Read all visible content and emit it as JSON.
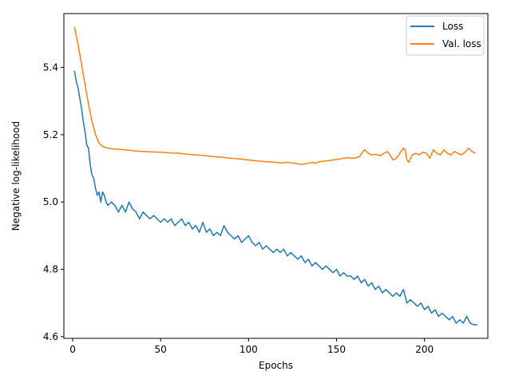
{
  "chart_data": {
    "type": "line",
    "title": "",
    "xlabel": "Epochs",
    "ylabel": "Negative log-likelihood",
    "xlim": [
      -5,
      236
    ],
    "ylim": [
      4.595,
      5.56
    ],
    "xticks": [
      0,
      50,
      100,
      150,
      200
    ],
    "yticks": [
      4.6,
      4.8,
      5.0,
      5.2,
      5.4
    ],
    "xtick_labels": [
      "0",
      "50",
      "100",
      "150",
      "200"
    ],
    "ytick_labels": [
      "4.6",
      "4.8",
      "5.0",
      "5.2",
      "5.4"
    ],
    "grid": false,
    "legend_position": "top-right",
    "series": [
      {
        "name": "Loss",
        "color": "#1f77b4",
        "points": [
          [
            1,
            5.39
          ],
          [
            2,
            5.36
          ],
          [
            3,
            5.34
          ],
          [
            4,
            5.31
          ],
          [
            5,
            5.28
          ],
          [
            6,
            5.24
          ],
          [
            7,
            5.21
          ],
          [
            8,
            5.17
          ],
          [
            9,
            5.16
          ],
          [
            10,
            5.11
          ],
          [
            11,
            5.08
          ],
          [
            12,
            5.07
          ],
          [
            13,
            5.04
          ],
          [
            14,
            5.02
          ],
          [
            15,
            5.03
          ],
          [
            16,
            5.0
          ],
          [
            17,
            5.03
          ],
          [
            18,
            5.02
          ],
          [
            19,
            5.0
          ],
          [
            20,
            4.99
          ],
          [
            22,
            5.0
          ],
          [
            24,
            4.99
          ],
          [
            26,
            4.97
          ],
          [
            28,
            4.99
          ],
          [
            30,
            4.97
          ],
          [
            32,
            5.0
          ],
          [
            34,
            4.98
          ],
          [
            36,
            4.97
          ],
          [
            38,
            4.95
          ],
          [
            40,
            4.97
          ],
          [
            42,
            4.96
          ],
          [
            44,
            4.95
          ],
          [
            46,
            4.96
          ],
          [
            48,
            4.95
          ],
          [
            50,
            4.94
          ],
          [
            52,
            4.95
          ],
          [
            54,
            4.94
          ],
          [
            56,
            4.95
          ],
          [
            58,
            4.93
          ],
          [
            60,
            4.94
          ],
          [
            62,
            4.95
          ],
          [
            64,
            4.93
          ],
          [
            66,
            4.94
          ],
          [
            68,
            4.92
          ],
          [
            70,
            4.93
          ],
          [
            72,
            4.91
          ],
          [
            74,
            4.94
          ],
          [
            76,
            4.91
          ],
          [
            78,
            4.92
          ],
          [
            80,
            4.9
          ],
          [
            82,
            4.91
          ],
          [
            84,
            4.9
          ],
          [
            86,
            4.93
          ],
          [
            88,
            4.91
          ],
          [
            90,
            4.9
          ],
          [
            92,
            4.89
          ],
          [
            94,
            4.9
          ],
          [
            96,
            4.88
          ],
          [
            98,
            4.89
          ],
          [
            100,
            4.9
          ],
          [
            102,
            4.88
          ],
          [
            104,
            4.87
          ],
          [
            106,
            4.88
          ],
          [
            108,
            4.86
          ],
          [
            110,
            4.87
          ],
          [
            112,
            4.86
          ],
          [
            114,
            4.85
          ],
          [
            116,
            4.86
          ],
          [
            118,
            4.85
          ],
          [
            120,
            4.86
          ],
          [
            122,
            4.84
          ],
          [
            124,
            4.85
          ],
          [
            126,
            4.84
          ],
          [
            128,
            4.83
          ],
          [
            130,
            4.84
          ],
          [
            132,
            4.82
          ],
          [
            134,
            4.83
          ],
          [
            136,
            4.81
          ],
          [
            138,
            4.82
          ],
          [
            140,
            4.81
          ],
          [
            142,
            4.8
          ],
          [
            144,
            4.81
          ],
          [
            146,
            4.8
          ],
          [
            148,
            4.79
          ],
          [
            150,
            4.8
          ],
          [
            152,
            4.78
          ],
          [
            154,
            4.79
          ],
          [
            156,
            4.78
          ],
          [
            158,
            4.78
          ],
          [
            160,
            4.77
          ],
          [
            162,
            4.78
          ],
          [
            164,
            4.76
          ],
          [
            166,
            4.77
          ],
          [
            168,
            4.75
          ],
          [
            170,
            4.76
          ],
          [
            172,
            4.74
          ],
          [
            174,
            4.75
          ],
          [
            176,
            4.73
          ],
          [
            178,
            4.74
          ],
          [
            180,
            4.73
          ],
          [
            182,
            4.72
          ],
          [
            184,
            4.73
          ],
          [
            186,
            4.72
          ],
          [
            188,
            4.74
          ],
          [
            190,
            4.7
          ],
          [
            192,
            4.71
          ],
          [
            194,
            4.7
          ],
          [
            196,
            4.69
          ],
          [
            198,
            4.7
          ],
          [
            200,
            4.68
          ],
          [
            202,
            4.69
          ],
          [
            204,
            4.67
          ],
          [
            206,
            4.68
          ],
          [
            208,
            4.66
          ],
          [
            210,
            4.67
          ],
          [
            212,
            4.66
          ],
          [
            214,
            4.65
          ],
          [
            216,
            4.66
          ],
          [
            218,
            4.64
          ],
          [
            220,
            4.65
          ],
          [
            222,
            4.64
          ],
          [
            224,
            4.66
          ],
          [
            226,
            4.64
          ],
          [
            228,
            4.635
          ],
          [
            230,
            4.635
          ]
        ]
      },
      {
        "name": "Val. loss",
        "color": "#ff7f0e",
        "points": [
          [
            1,
            5.52
          ],
          [
            3,
            5.47
          ],
          [
            5,
            5.41
          ],
          [
            7,
            5.35
          ],
          [
            9,
            5.29
          ],
          [
            11,
            5.24
          ],
          [
            13,
            5.2
          ],
          [
            15,
            5.175
          ],
          [
            17,
            5.165
          ],
          [
            20,
            5.16
          ],
          [
            25,
            5.157
          ],
          [
            30,
            5.155
          ],
          [
            35,
            5.152
          ],
          [
            40,
            5.15
          ],
          [
            45,
            5.149
          ],
          [
            50,
            5.148
          ],
          [
            55,
            5.146
          ],
          [
            60,
            5.145
          ],
          [
            65,
            5.142
          ],
          [
            70,
            5.14
          ],
          [
            75,
            5.138
          ],
          [
            80,
            5.135
          ],
          [
            85,
            5.133
          ],
          [
            90,
            5.13
          ],
          [
            95,
            5.128
          ],
          [
            100,
            5.125
          ],
          [
            105,
            5.122
          ],
          [
            110,
            5.12
          ],
          [
            115,
            5.118
          ],
          [
            118,
            5.116
          ],
          [
            122,
            5.118
          ],
          [
            126,
            5.115
          ],
          [
            130,
            5.112
          ],
          [
            134,
            5.115
          ],
          [
            136,
            5.118
          ],
          [
            138,
            5.115
          ],
          [
            140,
            5.12
          ],
          [
            144,
            5.122
          ],
          [
            148,
            5.125
          ],
          [
            152,
            5.128
          ],
          [
            156,
            5.132
          ],
          [
            160,
            5.13
          ],
          [
            163,
            5.135
          ],
          [
            165,
            5.15
          ],
          [
            166,
            5.155
          ],
          [
            168,
            5.145
          ],
          [
            170,
            5.14
          ],
          [
            172,
            5.142
          ],
          [
            175,
            5.138
          ],
          [
            177,
            5.145
          ],
          [
            179,
            5.15
          ],
          [
            181,
            5.135
          ],
          [
            182,
            5.125
          ],
          [
            184,
            5.13
          ],
          [
            186,
            5.145
          ],
          [
            188,
            5.16
          ],
          [
            189,
            5.155
          ],
          [
            190,
            5.125
          ],
          [
            191,
            5.118
          ],
          [
            193,
            5.14
          ],
          [
            195,
            5.145
          ],
          [
            197,
            5.14
          ],
          [
            199,
            5.148
          ],
          [
            201,
            5.145
          ],
          [
            203,
            5.13
          ],
          [
            205,
            5.155
          ],
          [
            207,
            5.145
          ],
          [
            209,
            5.14
          ],
          [
            211,
            5.155
          ],
          [
            213,
            5.145
          ],
          [
            215,
            5.14
          ],
          [
            217,
            5.15
          ],
          [
            219,
            5.145
          ],
          [
            221,
            5.14
          ],
          [
            223,
            5.148
          ],
          [
            225,
            5.16
          ],
          [
            227,
            5.15
          ],
          [
            229,
            5.145
          ]
        ]
      }
    ]
  }
}
